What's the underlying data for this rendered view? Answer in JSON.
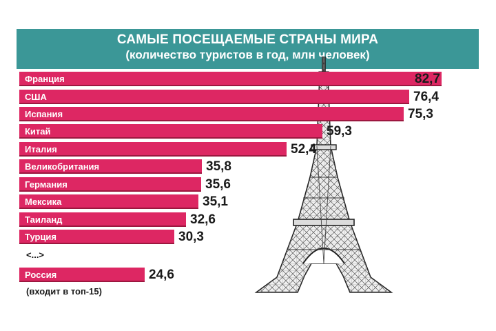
{
  "chart_data": {
    "type": "bar",
    "orientation": "horizontal",
    "title": "САМЫЕ ПОСЕЩАЕМЫЕ СТРАНЫ МИРА",
    "subtitle": "(количество туристов в год, млн человек)",
    "categories": [
      "Франция",
      "США",
      "Испания",
      "Китай",
      "Италия",
      "Великобритания",
      "Германия",
      "Мексика",
      "Таиланд",
      "Турция",
      "Россия"
    ],
    "values": [
      82.7,
      76.4,
      75.3,
      59.3,
      52.4,
      35.8,
      35.6,
      35.1,
      32.6,
      30.3,
      24.6
    ],
    "value_labels": [
      "82,7",
      "76,4",
      "75,3",
      "59,3",
      "52,4",
      "35,8",
      "35,6",
      "35,1",
      "32,6",
      "30,3",
      "24,6"
    ],
    "ellipsis": "<...>",
    "footnote": "(входит в топ-15)",
    "xlim": [
      0,
      82.7
    ],
    "grid": false,
    "colors": {
      "bar": "#dd2763",
      "header": "#3b9797"
    }
  }
}
